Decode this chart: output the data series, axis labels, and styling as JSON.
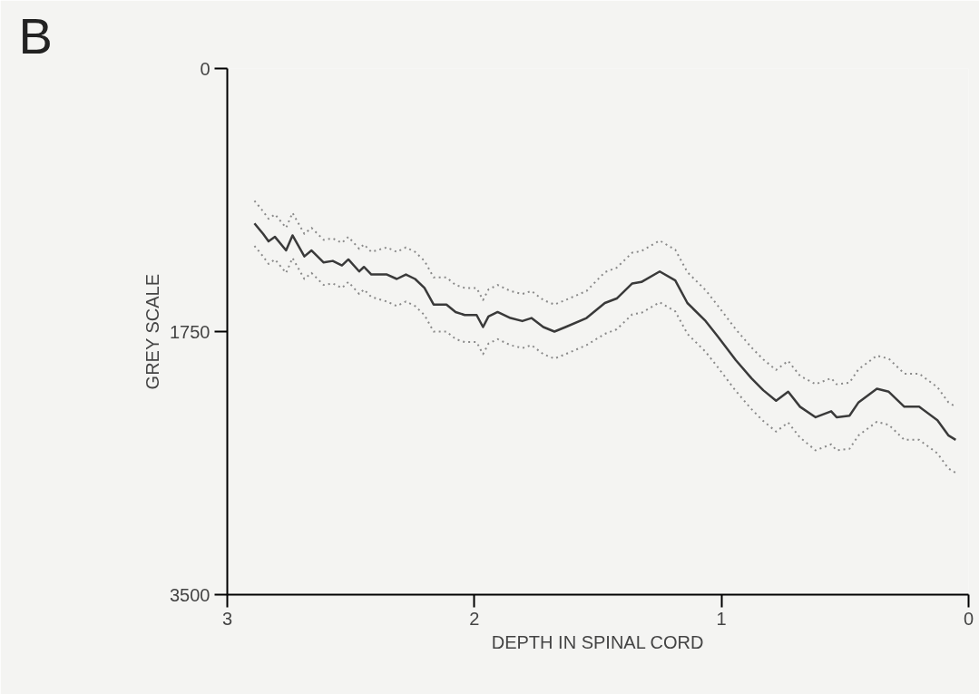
{
  "chart_data": {
    "type": "line",
    "xlabel": "DEPTH IN SPINAL CORD",
    "ylabel": "GREY SCALE",
    "annotations": [
      "B"
    ],
    "x": [
      2.89,
      2.855,
      2.833,
      2.807,
      2.762,
      2.736,
      2.688,
      2.659,
      2.61,
      2.573,
      2.536,
      2.51,
      2.466,
      2.447,
      2.417,
      2.354,
      2.314,
      2.277,
      2.24,
      2.202,
      2.165,
      2.113,
      2.076,
      2.039,
      1.991,
      1.965,
      1.943,
      1.906,
      1.854,
      1.806,
      1.769,
      1.721,
      1.676,
      1.631,
      1.546,
      1.472,
      1.424,
      1.361,
      1.324,
      1.25,
      1.187,
      1.138,
      1.064,
      1.016,
      0.942,
      0.879,
      0.831,
      0.779,
      0.73,
      0.682,
      0.619,
      0.556,
      0.534,
      0.482,
      0.445,
      0.371,
      0.323,
      0.26,
      0.2,
      0.126,
      0.082,
      0.052
    ],
    "series": [
      {
        "color": "#3a3a3a",
        "line_style": "solid",
        "values": [
          1030,
          1100,
          1150,
          1120,
          1210,
          1110,
          1250,
          1210,
          1290,
          1280,
          1310,
          1270,
          1350,
          1320,
          1370,
          1370,
          1400,
          1370,
          1400,
          1460,
          1570,
          1570,
          1620,
          1640,
          1640,
          1720,
          1650,
          1620,
          1660,
          1680,
          1660,
          1720,
          1750,
          1720,
          1660,
          1560,
          1530,
          1430,
          1420,
          1350,
          1410,
          1560,
          1680,
          1780,
          1940,
          2060,
          2140,
          2210,
          2150,
          2250,
          2320,
          2280,
          2320,
          2310,
          2220,
          2130,
          2150,
          2250,
          2250,
          2340,
          2440,
          2470
        ]
      },
      {
        "color": "#8a8a8a",
        "line_style": "dotted",
        "values": [
          880,
          950,
          1000,
          970,
          1060,
          960,
          1100,
          1060,
          1140,
          1130,
          1160,
          1120,
          1200,
          1170,
          1220,
          1190,
          1220,
          1190,
          1220,
          1280,
          1390,
          1390,
          1440,
          1460,
          1460,
          1540,
          1470,
          1440,
          1480,
          1500,
          1480,
          1540,
          1570,
          1540,
          1480,
          1355,
          1325,
          1225,
          1215,
          1145,
          1205,
          1355,
          1475,
          1575,
          1735,
          1855,
          1935,
          2005,
          1945,
          2045,
          2100,
          2060,
          2100,
          2090,
          2000,
          1910,
          1930,
          2030,
          2030,
          2120,
          2220,
          2250
        ]
      },
      {
        "color": "#8a8a8a",
        "line_style": "dotted",
        "values": [
          1180,
          1250,
          1300,
          1270,
          1360,
          1260,
          1400,
          1360,
          1440,
          1430,
          1460,
          1420,
          1500,
          1470,
          1520,
          1550,
          1580,
          1550,
          1580,
          1640,
          1750,
          1750,
          1800,
          1820,
          1820,
          1900,
          1830,
          1800,
          1840,
          1860,
          1840,
          1900,
          1930,
          1900,
          1840,
          1765,
          1735,
          1635,
          1625,
          1555,
          1615,
          1765,
          1885,
          1985,
          2145,
          2265,
          2345,
          2415,
          2355,
          2455,
          2540,
          2500,
          2540,
          2530,
          2440,
          2350,
          2370,
          2470,
          2470,
          2560,
          2660,
          2690
        ]
      }
    ],
    "xlim": [
      3,
      0
    ],
    "ylim": [
      3500,
      0
    ],
    "xticks": [
      3,
      2,
      1,
      0
    ],
    "yticks": [
      0,
      1750,
      3500
    ],
    "grid": false,
    "marker": "none"
  }
}
